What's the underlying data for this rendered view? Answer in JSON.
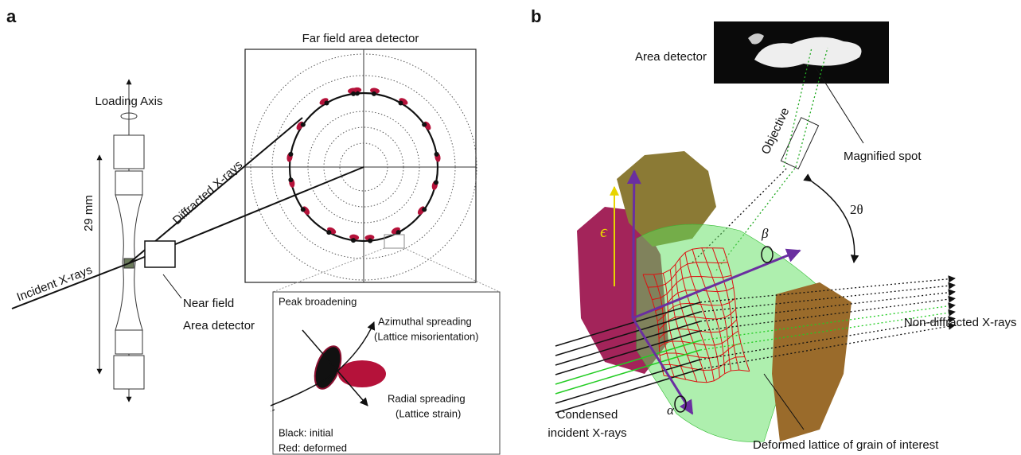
{
  "panel_a": {
    "label": "a",
    "far_field_title": "Far field area detector",
    "loading_axis": "Loading Axis",
    "length": "29 mm",
    "diffracted": "Diffracted X-rays",
    "incident": "Incident X-rays",
    "near_field_1": "Near field",
    "near_field_2": "Area detector",
    "inset": {
      "title": "Peak broadening",
      "azimuthal_1": "Azimuthal spreading",
      "azimuthal_2": "(Lattice misorientation)",
      "radial_1": "Radial spreading",
      "radial_2": "(Lattice strain)",
      "legend_black": "Black: initial",
      "legend_red": "Red: deformed"
    }
  },
  "panel_b": {
    "label": "b",
    "area_detector": "Area detector",
    "objective": "Objective",
    "magnified_spot": "Magnified spot",
    "two_theta": "2θ",
    "beta": "β",
    "epsilon": "ϵ",
    "alpha": "α",
    "non_diffracted": "Non-diffracted X-rays",
    "condensed_1": "Condensed",
    "condensed_2": "incident X-rays",
    "deformed_lattice": "Deformed lattice of grain of interest"
  }
}
